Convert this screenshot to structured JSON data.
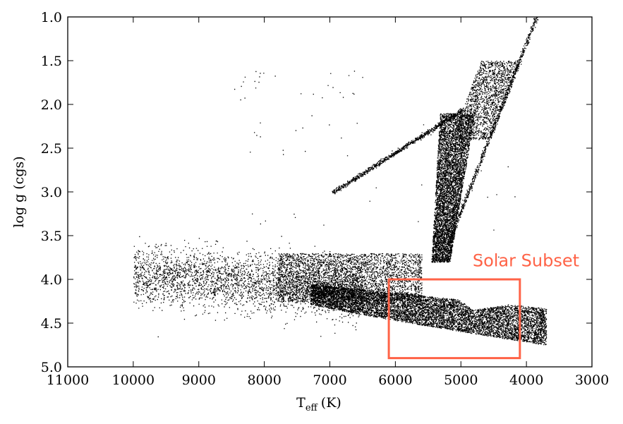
{
  "chart_data": {
    "type": "scatter",
    "title": "",
    "xlabel": "T",
    "xlabel_sub": "eff",
    "xlabel_unit": "(K)",
    "ylabel": "log g (cgs)",
    "xlim": [
      11000,
      3000
    ],
    "ylim": [
      1.0,
      5.0
    ],
    "x_inverted": true,
    "y_inverted": true,
    "x_ticks": [
      11000,
      10000,
      9000,
      8000,
      7000,
      6000,
      5000,
      4000,
      3000
    ],
    "x_tick_labels": [
      "11000",
      "10000",
      "9000",
      "8000",
      "7000",
      "6000",
      "5000",
      "4000",
      "3000"
    ],
    "y_ticks": [
      1.0,
      1.5,
      2.0,
      2.5,
      3.0,
      3.5,
      4.0,
      4.5,
      5.0
    ],
    "y_tick_labels": [
      "1.0",
      "1.5",
      "2.0",
      "2.5",
      "3.0",
      "3.5",
      "4.0",
      "4.5",
      "5.0"
    ],
    "grid": false,
    "marker_color": "#000000",
    "series": [
      {
        "description_points": [
          {
            "teff": 9950,
            "logg": 4.2
          },
          {
            "teff": 9500,
            "logg": 4.1
          },
          {
            "teff": 9000,
            "logg": 4.0
          },
          {
            "teff": 8500,
            "logg": 3.95
          },
          {
            "teff": 8000,
            "logg": 3.9
          },
          {
            "teff": 7500,
            "logg": 4.05
          },
          {
            "teff": 7000,
            "logg": 4.2
          },
          {
            "teff": 6500,
            "logg": 4.3
          },
          {
            "teff": 6000,
            "logg": 4.4
          },
          {
            "teff": 5500,
            "logg": 4.55
          },
          {
            "teff": 5000,
            "logg": 4.65
          },
          {
            "teff": 4500,
            "logg": 4.72
          },
          {
            "teff": 4000,
            "logg": 4.75
          },
          {
            "teff": 3600,
            "logg": 4.75
          },
          {
            "teff": 4950,
            "logg": 3.7
          },
          {
            "teff": 5000,
            "logg": 3.0
          },
          {
            "teff": 4850,
            "logg": 2.3
          },
          {
            "teff": 4600,
            "logg": 1.8
          },
          {
            "teff": 4300,
            "logg": 1.6
          },
          {
            "teff": 3850,
            "logg": 1.0
          },
          {
            "teff": 6950,
            "logg": 3.0
          },
          {
            "teff": 6000,
            "logg": 2.5
          },
          {
            "teff": 5000,
            "logg": 2.05
          }
        ]
      }
    ],
    "annotations": [
      {
        "text": "Solar Subset",
        "color": "#ff6347",
        "box": {
          "teff_min": 4100,
          "teff_max": 6100,
          "logg_min": 4.0,
          "logg_max": 4.9
        }
      }
    ]
  }
}
